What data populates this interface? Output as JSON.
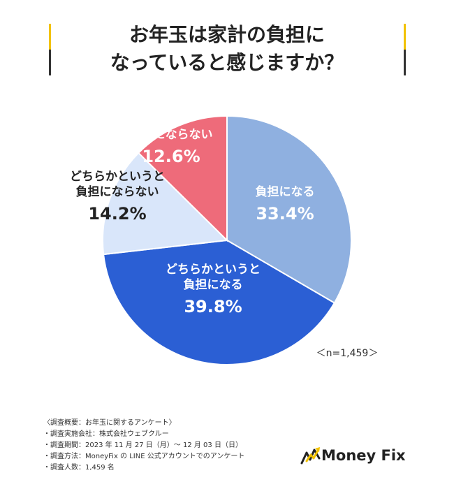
{
  "title": {
    "line1": "お年玉は家計の負担に",
    "line2": "なっていると感じますか？"
  },
  "chart_data": {
    "type": "pie",
    "title": "お年玉は家計の負担になっていると感じますか？",
    "slices": [
      {
        "label": [
          "負担になる"
        ],
        "value": 33.4,
        "value_label": "33.4%",
        "color": "#8fb0e0",
        "label_color": "#ffffff"
      },
      {
        "label": [
          "どちらかというと",
          "負担になる"
        ],
        "value": 39.8,
        "value_label": "39.8%",
        "color": "#2b5fd4",
        "label_color": "#ffffff"
      },
      {
        "label": [
          "どちらかというと",
          "負担にならない"
        ],
        "value": 14.2,
        "value_label": "14.2%",
        "color": "#d9e6fa",
        "label_color": "#222222"
      },
      {
        "label": [
          "負担にならない"
        ],
        "value": 12.6,
        "value_label": "12.6%",
        "color": "#ee6b7a",
        "label_color": "#ffffff"
      }
    ],
    "start": "12 o'clock",
    "direction": "clockwise",
    "sample_note": "＜n=1,459＞"
  },
  "footnotes": [
    "〈調査概要：お年玉に関するアンケート〉",
    "・調査実施会社：株式会社ウェブクルー",
    "・調査期間：2023 年 11 月 27 日（月）〜 12 月 03 日（日）",
    "・調査方法：MoneyFix の LINE 公式アカウントでのアンケート",
    "・調査人数：1,459 名"
  ],
  "logo": {
    "text": "Money Fix",
    "colors": {
      "dark": "#222222",
      "accent": "#f2c200"
    }
  }
}
